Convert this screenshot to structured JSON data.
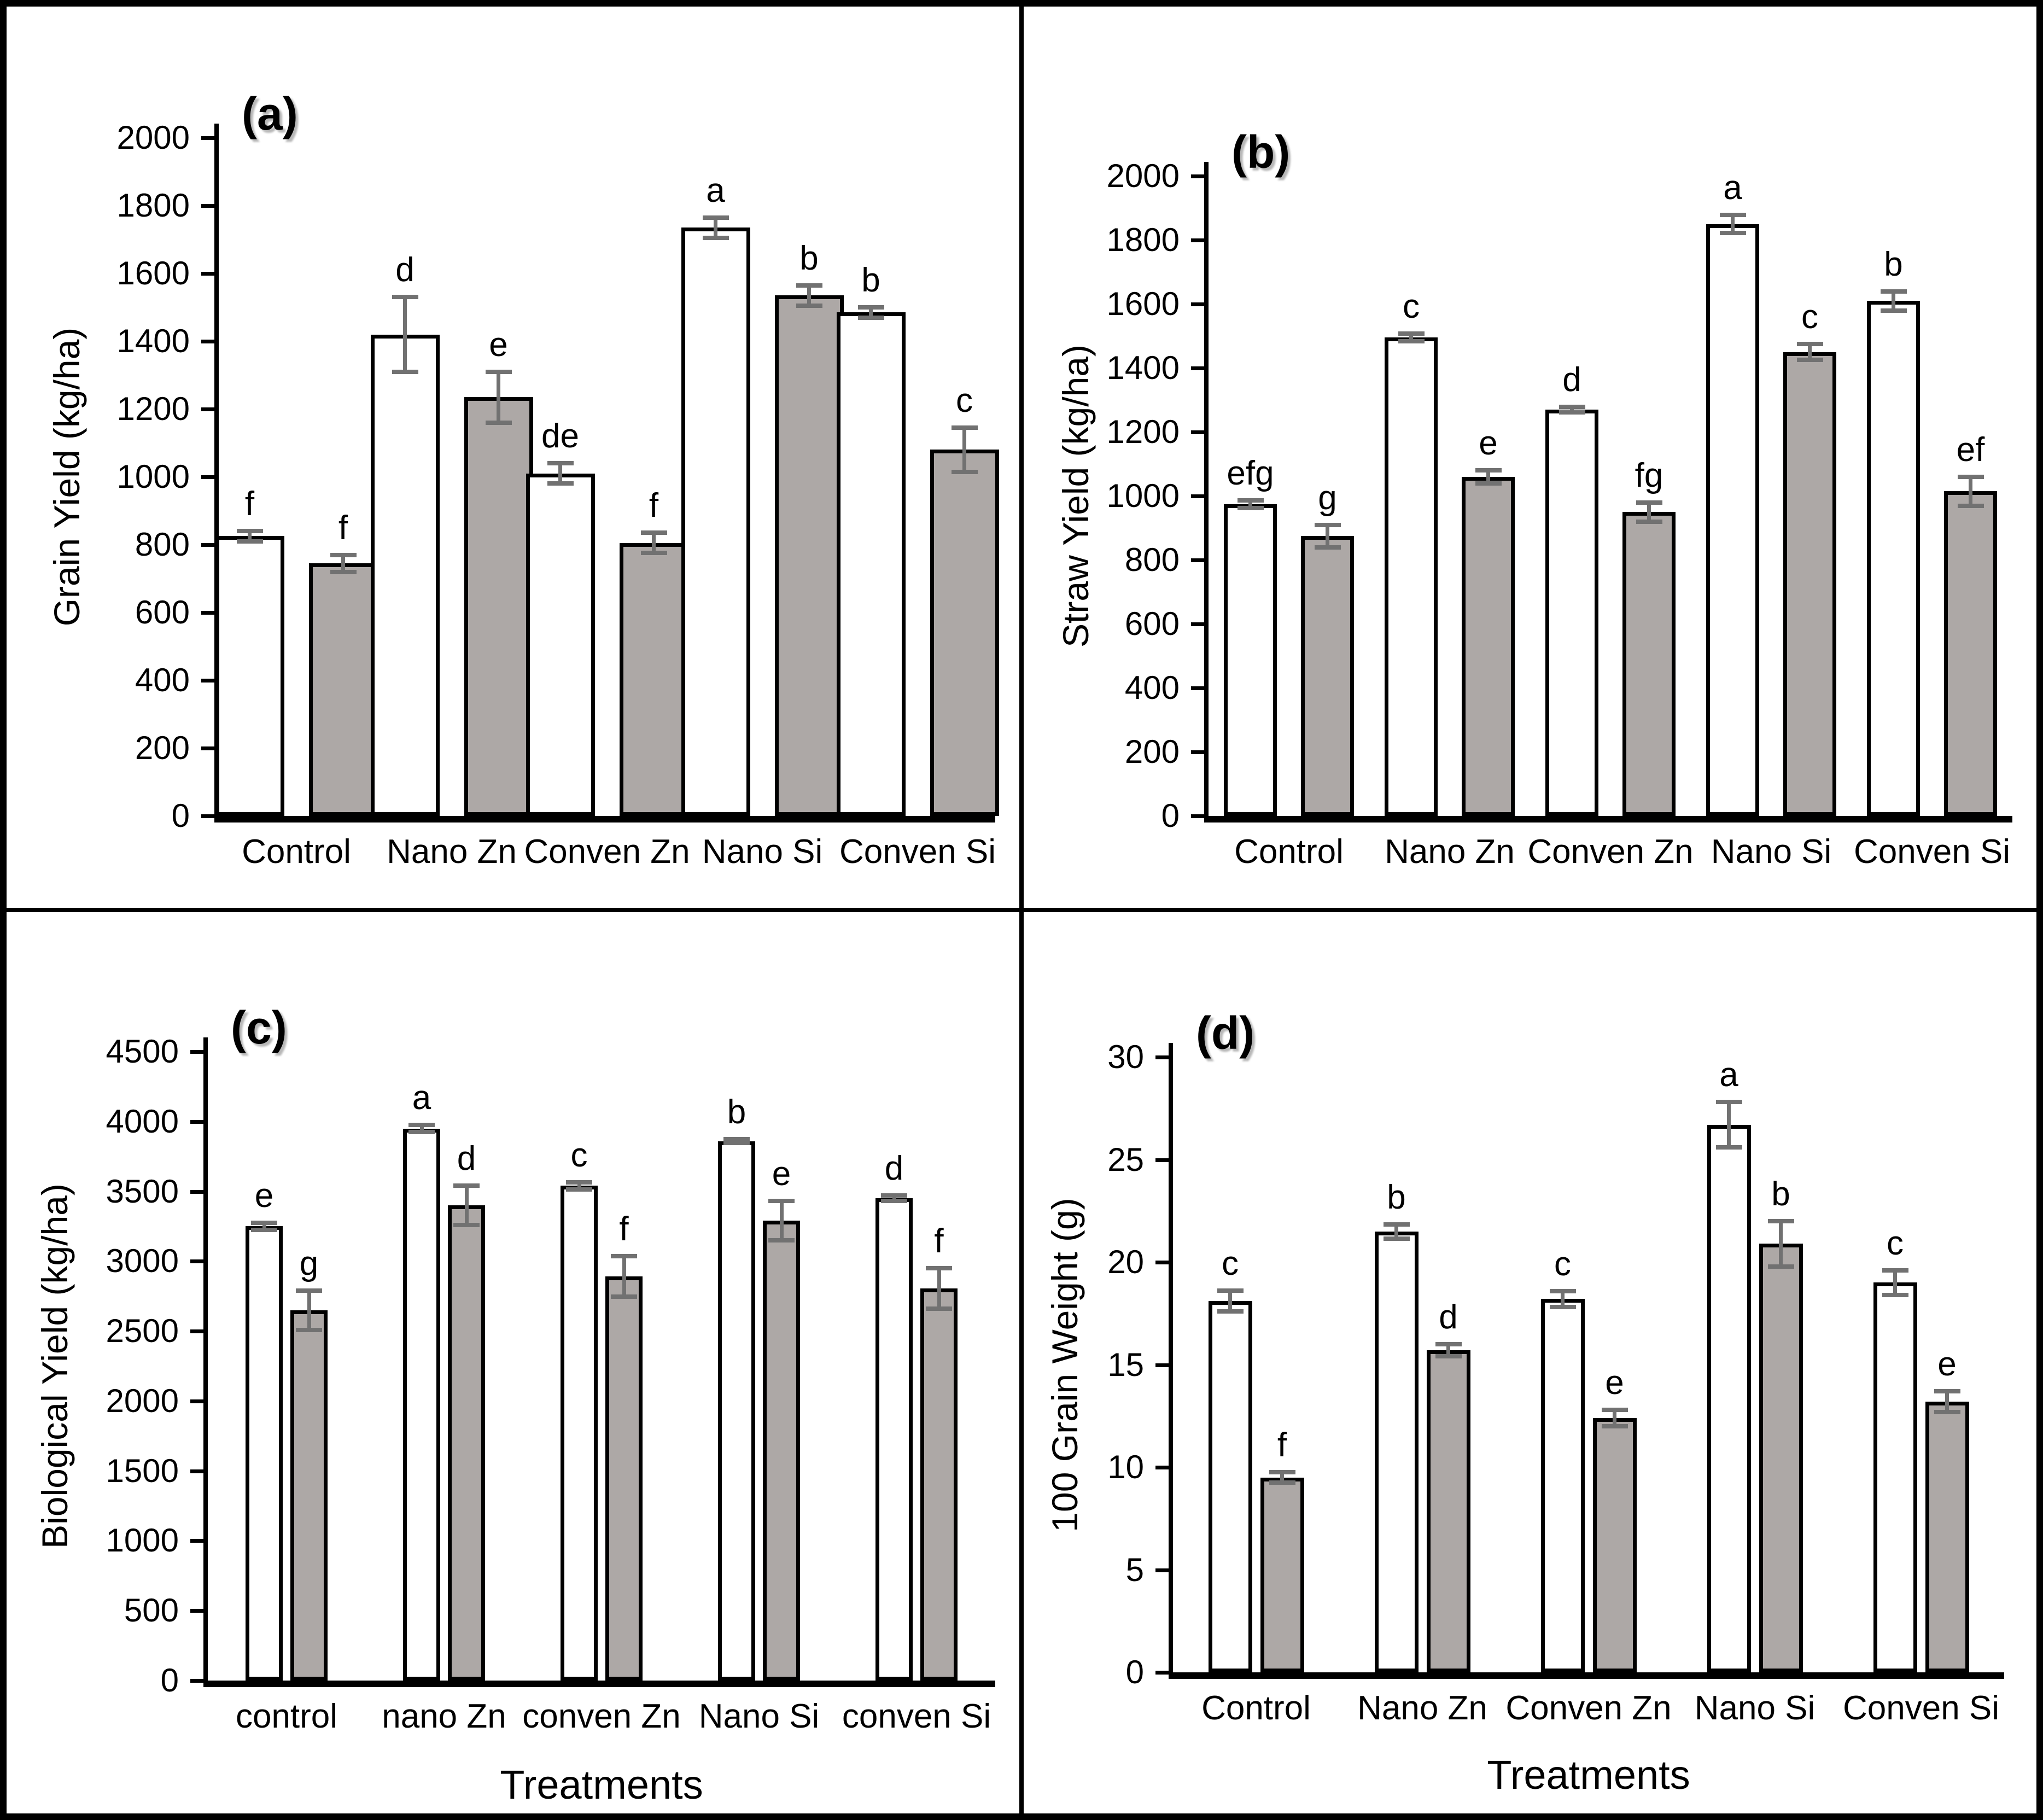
{
  "figure": {
    "colors": {
      "background": "#ffffff",
      "axis": "#000000",
      "bar_fill_open": "#ffffff",
      "bar_fill_shaded": "#ada8a6",
      "bar_border": "#000000",
      "error_bar": "#717171",
      "panel_letter_shadow": "#b8b8b8"
    },
    "legend": "none",
    "grid_lines": "off"
  },
  "chart_data": [
    {
      "id": "a",
      "panel_label": "(a)",
      "type": "bar",
      "title": "",
      "ylabel": "Grain Yield (kg/ha)",
      "xlabel": "",
      "ylim": [
        0,
        2000
      ],
      "ytick_step": 200,
      "yticks": [
        0,
        200,
        400,
        600,
        800,
        1000,
        1200,
        1400,
        1600,
        1800,
        2000
      ],
      "categories": [
        "Control",
        "Nano Zn",
        "Conven Zn",
        "Nano Si",
        "Conven Si"
      ],
      "series": [
        {
          "name": "open-bar",
          "fill": "#ffffff",
          "values": [
            825,
            1420,
            1010,
            1735,
            1485
          ],
          "errors": [
            15,
            110,
            30,
            30,
            15
          ],
          "sig_letters": [
            "f",
            "d",
            "de",
            "a",
            "b"
          ]
        },
        {
          "name": "shaded-bar",
          "fill": "#ada8a6",
          "values": [
            745,
            1235,
            805,
            1535,
            1080
          ],
          "errors": [
            25,
            75,
            30,
            30,
            65
          ],
          "sig_letters": [
            "f",
            "e",
            "f",
            "b",
            "c"
          ]
        }
      ]
    },
    {
      "id": "b",
      "panel_label": "(b)",
      "type": "bar",
      "title": "",
      "ylabel": "Straw Yield  (kg/ha)",
      "xlabel": "",
      "ylim": [
        0,
        2000
      ],
      "ytick_step": 200,
      "yticks": [
        0,
        200,
        400,
        600,
        800,
        1000,
        1200,
        1400,
        1600,
        1800,
        2000
      ],
      "categories": [
        "Control",
        "Nano Zn",
        "Conven Zn",
        "Nano Si",
        "Conven Si"
      ],
      "series": [
        {
          "name": "open-bar",
          "fill": "#ffffff",
          "values": [
            975,
            1495,
            1270,
            1850,
            1610
          ],
          "errors": [
            12,
            12,
            8,
            28,
            30
          ],
          "sig_letters": [
            "efg",
            "c",
            "d",
            "a",
            "b"
          ]
        },
        {
          "name": "shaded-bar",
          "fill": "#ada8a6",
          "values": [
            875,
            1060,
            950,
            1450,
            1015
          ],
          "errors": [
            35,
            20,
            30,
            25,
            45
          ],
          "sig_letters": [
            "g",
            "e",
            "fg",
            "c",
            "ef"
          ]
        }
      ]
    },
    {
      "id": "c",
      "panel_label": "(c)",
      "type": "bar",
      "title": "",
      "ylabel": "Biological Yield (kg/ha)",
      "xlabel": "Treatments",
      "ylim": [
        0,
        4500
      ],
      "ytick_step": 500,
      "yticks": [
        0,
        500,
        1000,
        1500,
        2000,
        2500,
        3000,
        3500,
        4000,
        4500
      ],
      "categories": [
        "control",
        "nano Zn",
        "conven Zn",
        "Nano Si",
        "conven Si"
      ],
      "series": [
        {
          "name": "open-bar",
          "fill": "#ffffff",
          "values": [
            3250,
            3950,
            3540,
            3860,
            3450
          ],
          "errors": [
            25,
            25,
            25,
            15,
            20
          ],
          "sig_letters": [
            "e",
            "a",
            "c",
            "b",
            "d"
          ]
        },
        {
          "name": "shaded-bar",
          "fill": "#ada8a6",
          "values": [
            2650,
            3400,
            2890,
            3290,
            2805
          ],
          "errors": [
            140,
            140,
            145,
            140,
            145
          ],
          "sig_letters": [
            "g",
            "d",
            "f",
            "e",
            "f"
          ]
        }
      ]
    },
    {
      "id": "d",
      "panel_label": "(d)",
      "type": "bar",
      "title": "",
      "ylabel": "100 Grain Weight (g)",
      "xlabel": "Treatments",
      "ylim": [
        0,
        30
      ],
      "ytick_step": 5,
      "yticks": [
        0,
        5,
        10,
        15,
        20,
        25,
        30
      ],
      "categories": [
        "Control",
        "Nano Zn",
        "Conven Zn",
        "Nano Si",
        "Conven Si"
      ],
      "series": [
        {
          "name": "open-bar",
          "fill": "#ffffff",
          "values": [
            18.1,
            21.5,
            18.2,
            26.7,
            19.0
          ],
          "errors": [
            0.5,
            0.35,
            0.4,
            1.1,
            0.6
          ],
          "sig_letters": [
            "c",
            "b",
            "c",
            "a",
            "c"
          ]
        },
        {
          "name": "shaded-bar",
          "fill": "#ada8a6",
          "values": [
            9.5,
            15.7,
            12.4,
            20.9,
            13.2
          ],
          "errors": [
            0.25,
            0.3,
            0.4,
            1.1,
            0.5
          ],
          "sig_letters": [
            "f",
            "d",
            "e",
            "b",
            "e"
          ]
        }
      ]
    }
  ]
}
